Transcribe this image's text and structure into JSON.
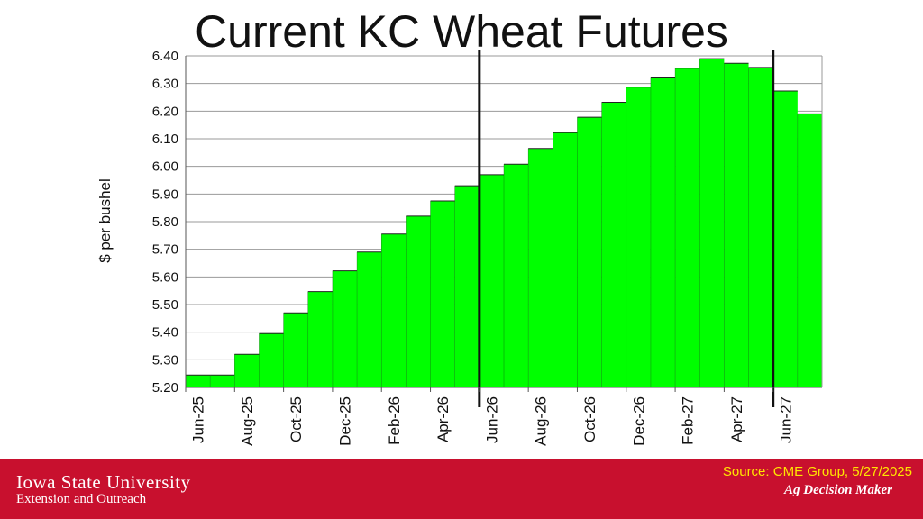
{
  "chart_data": {
    "type": "bar",
    "title": "Current KC Wheat Futures",
    "ylabel": "$ per bushel",
    "xlabel": "",
    "ylim": [
      5.2,
      6.4
    ],
    "yticks": [
      "5.20",
      "5.30",
      "5.40",
      "5.50",
      "5.60",
      "5.70",
      "5.80",
      "5.90",
      "6.00",
      "6.10",
      "6.20",
      "6.30",
      "6.40"
    ],
    "grid": true,
    "bar_color": "#00ff00",
    "categories": [
      "Jun-25",
      "Jul-25",
      "Aug-25",
      "Sep-25",
      "Oct-25",
      "Nov-25",
      "Dec-25",
      "Jan-26",
      "Feb-26",
      "Mar-26",
      "Apr-26",
      "May-26",
      "Jun-26",
      "Jul-26",
      "Aug-26",
      "Sep-26",
      "Oct-26",
      "Nov-26",
      "Dec-26",
      "Jan-27",
      "Feb-27",
      "Mar-27",
      "Apr-27",
      "May-27",
      "Jun-27",
      "Jul-27"
    ],
    "values": [
      5.245,
      5.245,
      5.32,
      5.395,
      5.47,
      5.547,
      5.622,
      5.69,
      5.755,
      5.82,
      5.875,
      5.93,
      5.97,
      6.008,
      6.065,
      6.122,
      6.178,
      6.232,
      6.287,
      6.32,
      6.355,
      6.39,
      6.373,
      6.358,
      6.273,
      6.19
    ],
    "tick_labels": [
      "Jun-25",
      "Aug-25",
      "Oct-25",
      "Dec-25",
      "Feb-26",
      "Apr-26",
      "Jun-26",
      "Aug-26",
      "Oct-26",
      "Dec-26",
      "Feb-27",
      "Apr-27",
      "Jun-27"
    ],
    "vertical_markers": [
      "Jun-26",
      "Jun-27"
    ]
  },
  "footer": {
    "university": "Iowa State University",
    "extension": "Extension and Outreach",
    "source": "Source: CME Group, 5/27/2025",
    "program": "Ag Decision Maker",
    "background_color": "#c8102e",
    "source_color": "#ffe600"
  }
}
